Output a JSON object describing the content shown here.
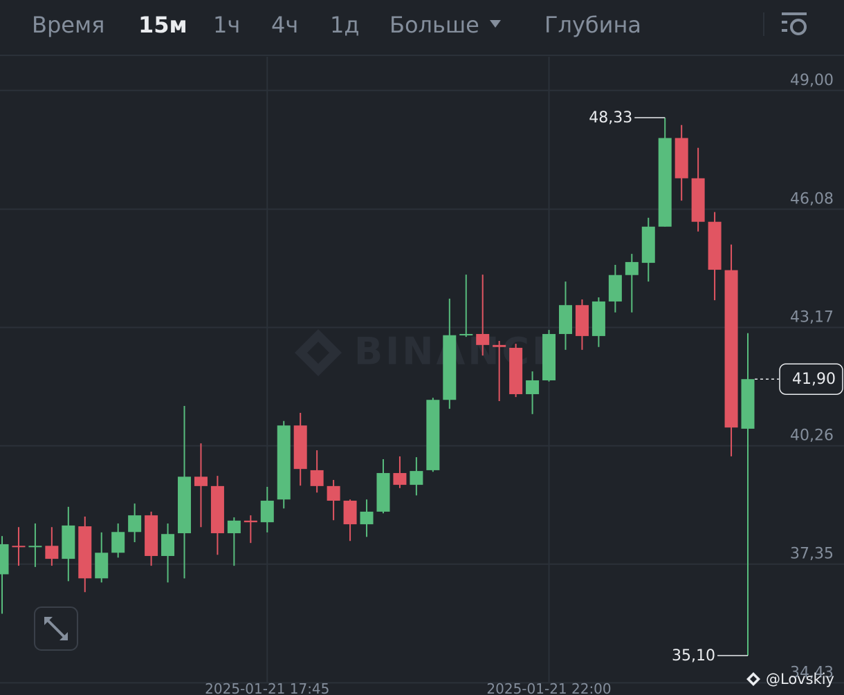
{
  "toolbar": {
    "tabs": [
      "Время",
      "15м",
      "1ч",
      "4ч",
      "1д",
      "Больше",
      "Глубина"
    ],
    "active_tab": 1
  },
  "watermark": "BINANCE",
  "handle": "@Lovskiy",
  "chart_data": {
    "type": "candlestick",
    "categories": [
      null,
      null,
      null,
      null,
      null,
      null,
      null,
      null,
      null,
      null,
      null,
      null,
      null,
      null,
      null,
      null,
      "2025-01-21 17:45",
      null,
      null,
      null,
      null,
      null,
      null,
      null,
      null,
      null,
      null,
      null,
      null,
      null,
      null,
      null,
      null,
      "2025-01-21 22:00",
      null,
      null,
      null,
      null,
      null,
      null,
      null,
      null,
      null,
      null,
      null,
      null
    ],
    "open": [
      37.1,
      37.8,
      37.79,
      37.8,
      37.48,
      38.28,
      37.0,
      37.63,
      38.14,
      38.55,
      37.55,
      38.11,
      39.5,
      39.27,
      38.11,
      38.42,
      38.38,
      38.94,
      40.76,
      39.66,
      39.27,
      38.91,
      38.33,
      38.64,
      39.59,
      39.3,
      39.66,
      41.39,
      42.98,
      43.01,
      42.74,
      42.67,
      41.53,
      41.87,
      43.01,
      43.72,
      42.96,
      43.81,
      44.46,
      44.76,
      45.65,
      47.83,
      46.84,
      45.77,
      44.58,
      40.68
    ],
    "high": [
      38.04,
      38.26,
      38.35,
      38.26,
      38.76,
      38.52,
      38.13,
      38.35,
      38.84,
      38.64,
      38.35,
      41.24,
      40.32,
      39.52,
      38.5,
      38.55,
      39.25,
      40.87,
      41.07,
      40.15,
      39.42,
      38.94,
      38.94,
      39.93,
      40.0,
      39.98,
      41.44,
      43.88,
      44.47,
      44.47,
      42.84,
      42.77,
      42.09,
      43.11,
      44.3,
      43.86,
      43.91,
      44.71,
      44.98,
      45.87,
      48.33,
      48.15,
      47.59,
      46.01,
      45.21,
      43.03
    ],
    "low": [
      36.13,
      37.31,
      37.28,
      37.31,
      36.93,
      36.66,
      36.9,
      37.51,
      37.89,
      37.31,
      36.9,
      37.0,
      38.26,
      37.58,
      37.31,
      37.87,
      38.13,
      38.72,
      39.28,
      39.11,
      38.43,
      37.92,
      38.02,
      38.6,
      39.22,
      39.04,
      39.62,
      41.17,
      42.94,
      42.48,
      41.36,
      41.46,
      41.04,
      41.84,
      42.62,
      42.62,
      42.69,
      43.54,
      43.54,
      44.3,
      45.65,
      46.29,
      45.53,
      43.84,
      40.0,
      35.1
    ],
    "close": [
      37.84,
      37.79,
      37.8,
      37.48,
      38.3,
      37.0,
      37.63,
      38.14,
      38.55,
      37.55,
      38.09,
      39.5,
      39.27,
      38.11,
      38.42,
      38.38,
      38.91,
      40.76,
      39.69,
      39.27,
      38.91,
      38.33,
      38.64,
      39.59,
      39.3,
      39.64,
      41.39,
      42.98,
      43.01,
      42.74,
      42.69,
      41.53,
      41.87,
      43.01,
      43.72,
      42.96,
      43.81,
      44.46,
      44.78,
      45.65,
      47.83,
      46.84,
      45.77,
      44.59,
      40.71,
      41.9
    ],
    "up_color": "#58bd7d",
    "down_color": "#e15562",
    "ylim": [
      34.42,
      49.83
    ],
    "yticks": [
      {
        "value": 49.0,
        "label": "49,00"
      },
      {
        "value": 46.08,
        "label": "46,08"
      },
      {
        "value": 43.17,
        "label": "43,17"
      },
      {
        "value": 40.26,
        "label": "40,26"
      },
      {
        "value": 37.35,
        "label": "37,35"
      },
      {
        "value": 34.43,
        "label": "34,43"
      }
    ],
    "grid": true,
    "annotations": [
      {
        "value": 48.33,
        "label": "48,33"
      },
      {
        "value": 35.1,
        "label": "35,10"
      }
    ],
    "last_price": {
      "value": 41.9,
      "label": "41,90"
    }
  }
}
